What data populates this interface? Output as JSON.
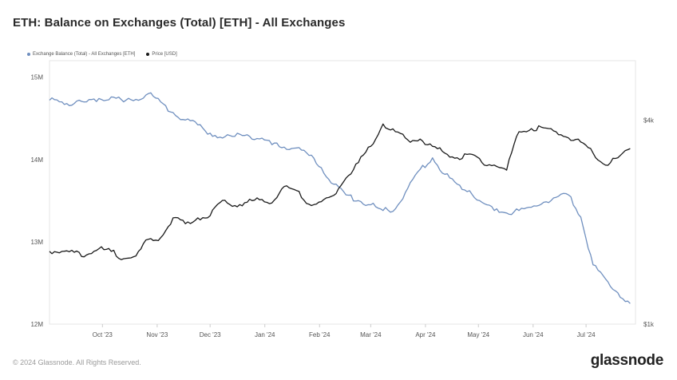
{
  "header": {
    "title": "ETH: Balance on Exchanges (Total) [ETH] - All Exchanges"
  },
  "footer": {
    "copyright": "© 2024 Glassnode. All Rights Reserved.",
    "logo": "glassnode"
  },
  "colors": {
    "balance": "#6f8fbf",
    "price": "#1a1a1a",
    "grid": "#eeeeee",
    "border": "#e6e6e6"
  },
  "chart_data": {
    "type": "line",
    "title": "ETH: Balance on Exchanges (Total) [ETH] - All Exchanges",
    "grid": false,
    "legend_position": "top-left",
    "x_ticks": [
      "Oct '23",
      "Nov '23",
      "Dec '23",
      "Jan '24",
      "Feb '24",
      "Mar '24",
      "Apr '24",
      "May '24",
      "Jun '24",
      "Jul '24"
    ],
    "y_left": {
      "ticks": [
        "12M",
        "13M",
        "14M",
        "15M"
      ],
      "range": [
        12000000,
        15200000
      ]
    },
    "y_right": {
      "ticks": [
        "$1k",
        "$4k"
      ],
      "scale": "log",
      "range": [
        1000,
        6000
      ]
    },
    "series": [
      {
        "name": "Exchange Balance (Total) - All Exchanges [ETH]",
        "axis": "left",
        "x": [
          "2023-09-01",
          "2023-09-08",
          "2023-09-15",
          "2023-09-22",
          "2023-09-29",
          "2023-10-06",
          "2023-10-13",
          "2023-10-20",
          "2023-10-27",
          "2023-11-03",
          "2023-11-10",
          "2023-11-17",
          "2023-11-24",
          "2023-12-01",
          "2023-12-08",
          "2023-12-15",
          "2023-12-22",
          "2023-12-29",
          "2024-01-05",
          "2024-01-12",
          "2024-01-19",
          "2024-01-26",
          "2024-02-02",
          "2024-02-09",
          "2024-02-16",
          "2024-02-23",
          "2024-03-01",
          "2024-03-08",
          "2024-03-15",
          "2024-03-22",
          "2024-03-29",
          "2024-04-05",
          "2024-04-12",
          "2024-04-19",
          "2024-04-26",
          "2024-05-03",
          "2024-05-10",
          "2024-05-17",
          "2024-05-24",
          "2024-05-31",
          "2024-06-07",
          "2024-06-14",
          "2024-06-21",
          "2024-06-28",
          "2024-07-05",
          "2024-07-12",
          "2024-07-19",
          "2024-07-26"
        ],
        "values": [
          14720000,
          14700000,
          14680000,
          14700000,
          14740000,
          14760000,
          14700000,
          14730000,
          14800000,
          14700000,
          14570000,
          14480000,
          14420000,
          14320000,
          14260000,
          14280000,
          14300000,
          14250000,
          14180000,
          14150000,
          14140000,
          14050000,
          13900000,
          13700000,
          13570000,
          13500000,
          13450000,
          13380000,
          13400000,
          13650000,
          13880000,
          14020000,
          13820000,
          13700000,
          13620000,
          13480000,
          13380000,
          13350000,
          13380000,
          13420000,
          13480000,
          13540000,
          13570000,
          13300000,
          12720000,
          12550000,
          12380000,
          12250000
        ],
        "values_tail_note": ""
      },
      {
        "name": "Price [USD]",
        "axis": "right",
        "x": [
          "2023-09-01",
          "2023-09-08",
          "2023-09-15",
          "2023-09-22",
          "2023-09-29",
          "2023-10-06",
          "2023-10-13",
          "2023-10-20",
          "2023-10-27",
          "2023-11-03",
          "2023-11-10",
          "2023-11-17",
          "2023-11-24",
          "2023-12-01",
          "2023-12-08",
          "2023-12-15",
          "2023-12-22",
          "2023-12-29",
          "2024-01-05",
          "2024-01-12",
          "2024-01-19",
          "2024-01-26",
          "2024-02-02",
          "2024-02-09",
          "2024-02-16",
          "2024-02-23",
          "2024-03-01",
          "2024-03-08",
          "2024-03-15",
          "2024-03-22",
          "2024-03-29",
          "2024-04-05",
          "2024-04-12",
          "2024-04-19",
          "2024-04-26",
          "2024-05-03",
          "2024-05-10",
          "2024-05-17",
          "2024-05-24",
          "2024-05-31",
          "2024-06-07",
          "2024-06-14",
          "2024-06-21",
          "2024-06-28",
          "2024-07-05",
          "2024-07-12",
          "2024-07-19",
          "2024-07-26"
        ],
        "values": [
          1640,
          1640,
          1630,
          1600,
          1670,
          1640,
          1560,
          1590,
          1780,
          1800,
          2060,
          1980,
          2060,
          2090,
          2320,
          2240,
          2290,
          2330,
          2280,
          2550,
          2480,
          2260,
          2300,
          2400,
          2700,
          3000,
          3350,
          3900,
          3700,
          3500,
          3520,
          3350,
          3200,
          3100,
          3180,
          3000,
          2950,
          2850,
          3700,
          3780,
          3800,
          3700,
          3550,
          3450,
          3200,
          2950,
          3100,
          3300
        ]
      }
    ]
  }
}
